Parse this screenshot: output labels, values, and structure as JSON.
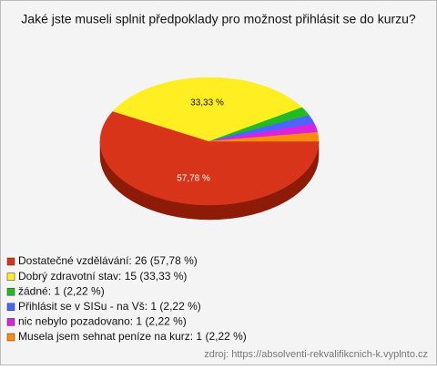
{
  "chart_data": {
    "type": "pie",
    "title": "Jaké jste museli splnit předpoklady pro možnost přihlásit se do kurzu?",
    "categories": [
      "Dostatečné vzdělávání: 26 (57,78 %)",
      "Dobrý zdravotní stav: 15 (33,33 %)",
      "žádné: 1 (2,22 %)",
      "Přihlásit se v SISu - na Vš: 1 (2,22 %)",
      "nic nebylo pozadovano: 1 (2,22 %)",
      "Musela jsem sehnat peníze na kurz: 1 (2,22 %)"
    ],
    "values": [
      57.78,
      33.33,
      2.22,
      2.22,
      2.22,
      2.22
    ],
    "value_labels": [
      "57,78 %",
      "33,33 %",
      null,
      null,
      null,
      null
    ],
    "colors": [
      "#d8341a",
      "#ffee22",
      "#22bb22",
      "#4a66ff",
      "#dd22dd",
      "#ff8a10"
    ],
    "side_colors": [
      "#8e1a08",
      "#b8a800",
      "#137a13",
      "#2a3fb0",
      "#921592",
      "#b85c00"
    ],
    "source": "zdroj: https://absolventi-rekvalifikcnich-k.vyplnto.cz"
  }
}
